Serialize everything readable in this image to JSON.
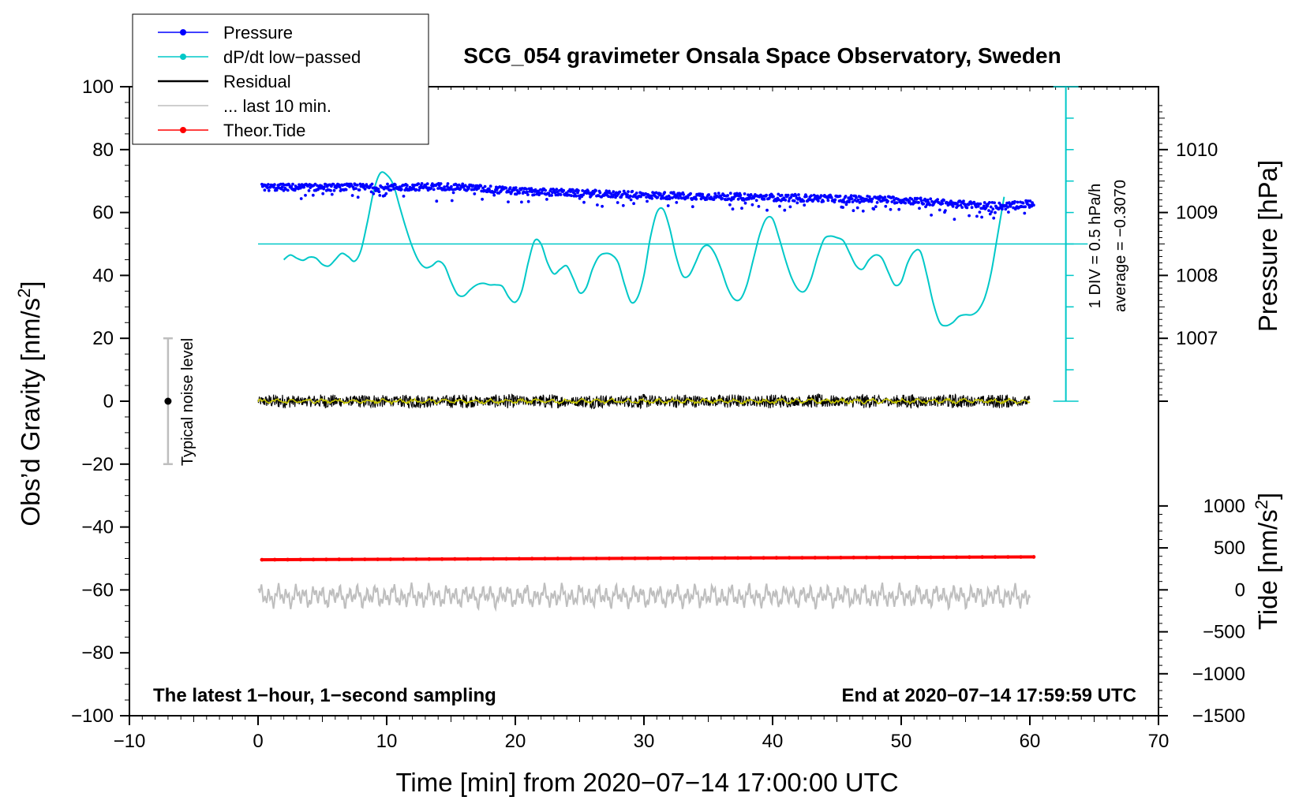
{
  "chart_data": {
    "type": "line",
    "title": "SCG_054 gravimeter Onsala Space Observatory, Sweden",
    "xlabel": "Time [min] from 2020−07−14 17:00:00 UTC",
    "ylabel_left": "Obs’d Gravity [nm/s",
    "ylabel_left_sup": "2",
    "ylabel_left_end": "]",
    "ylabel_right_pressure": "Pressure [hPa]",
    "ylabel_right_tide": "Tide [nm/s",
    "ylabel_right_tide_sup": "2",
    "ylabel_right_tide_end": "]",
    "xlim": [
      -10,
      70
    ],
    "ylim": [
      -100,
      100
    ],
    "x_ticks": [
      {
        "v": -10,
        "label": "−10"
      },
      {
        "v": 0,
        "label": "0"
      },
      {
        "v": 10,
        "label": "10"
      },
      {
        "v": 20,
        "label": "20"
      },
      {
        "v": 30,
        "label": "30"
      },
      {
        "v": 40,
        "label": "40"
      },
      {
        "v": 50,
        "label": "50"
      },
      {
        "v": 60,
        "label": "60"
      },
      {
        "v": 70,
        "label": "70"
      }
    ],
    "y_ticks": [
      {
        "v": 100,
        "label": "100"
      },
      {
        "v": 80,
        "label": "80"
      },
      {
        "v": 60,
        "label": "60"
      },
      {
        "v": 40,
        "label": "40"
      },
      {
        "v": 20,
        "label": "20"
      },
      {
        "v": 0,
        "label": "0"
      },
      {
        "v": -20,
        "label": "−20"
      },
      {
        "v": -40,
        "label": "−40"
      },
      {
        "v": -60,
        "label": "−60"
      },
      {
        "v": -80,
        "label": "−80"
      },
      {
        "v": -100,
        "label": "−100"
      }
    ],
    "pressure_axis": {
      "scale": "1 hPa = 20 nm/s² on left axis",
      "ticks": [
        {
          "v": 1010,
          "label": "1010"
        },
        {
          "v": 1009,
          "label": "1009"
        },
        {
          "v": 1008,
          "label": "1008"
        },
        {
          "v": 1007,
          "label": "1007"
        }
      ],
      "ref": 1009.0,
      "ref_gravity": 60
    },
    "tide_axis": {
      "ticks": [
        {
          "v": 1000,
          "label": "1000"
        },
        {
          "v": 500,
          "label": "500"
        },
        {
          "v": 0,
          "label": "0"
        },
        {
          "v": -500,
          "label": "−500"
        },
        {
          "v": -1000,
          "label": "−1000"
        },
        {
          "v": -1500,
          "label": "−1500"
        }
      ],
      "range": [
        -1500,
        1000
      ],
      "gravity_range": [
        -100,
        -33.3
      ]
    },
    "legend": [
      {
        "label": "Pressure",
        "color": "#0000ff",
        "marker": true
      },
      {
        "label": "dP/dt low−passed",
        "color": "#00c8c8",
        "marker": true
      },
      {
        "label": "Residual",
        "color": "#000000",
        "marker": false
      },
      {
        "label": "... last 10 min.",
        "color": "#bebebe",
        "marker": false
      },
      {
        "label": "Theor.Tide",
        "color": "#ff0000",
        "marker": true
      }
    ],
    "notes": {
      "bottom_left": "The latest 1−hour, 1−second sampling",
      "bottom_right": "End at 2020−07−14 17:59:59 UTC",
      "noise": "Typical noise level",
      "div": "1 DIV = 0.5 hPa/h",
      "average": "average = −0.3070"
    },
    "noise_bar": {
      "x": -7,
      "center": 0,
      "half_range": 20
    },
    "dpdt_baseline": 50,
    "dpdt_scale_axis": {
      "x": 62.8,
      "ymin": 0,
      "ymax": 100
    },
    "series": [
      {
        "name": "Pressure",
        "color": "#0000ff",
        "x_range": [
          0.3,
          60.3
        ],
        "trend": [
          [
            0.3,
            68.0
          ],
          [
            10,
            68.0
          ],
          [
            15,
            68.3
          ],
          [
            20,
            66.8
          ],
          [
            30,
            65.5
          ],
          [
            40,
            64.8
          ],
          [
            50,
            64.0
          ],
          [
            55,
            62.5
          ],
          [
            58,
            62.0
          ],
          [
            60.3,
            63.0
          ]
        ],
        "band_half_width": 1.1
      },
      {
        "name": "dP/dt low-passed",
        "color": "#00c8c8",
        "x": [
          2.0,
          2.5,
          3.0,
          3.5,
          4.0,
          4.5,
          5.0,
          5.5,
          6.0,
          6.5,
          7.0,
          7.5,
          8.0,
          8.5,
          9.0,
          9.5,
          10.0,
          10.5,
          11.0,
          11.5,
          12.0,
          12.5,
          13.0,
          13.5,
          14.0,
          14.5,
          15.0,
          15.5,
          16.0,
          16.5,
          17.0,
          17.5,
          18.0,
          18.5,
          19.0,
          19.5,
          20.0,
          20.5,
          21.0,
          21.5,
          22.0,
          22.5,
          23.0,
          23.5,
          24.0,
          24.5,
          25.0,
          25.5,
          26.0,
          26.5,
          27.0,
          27.5,
          28.0,
          28.5,
          29.0,
          29.5,
          30.0,
          30.5,
          31.0,
          31.5,
          32.0,
          32.5,
          33.0,
          33.5,
          34.0,
          34.5,
          35.0,
          35.5,
          36.0,
          36.5,
          37.0,
          37.5,
          38.0,
          38.5,
          39.0,
          39.5,
          40.0,
          40.5,
          41.0,
          41.5,
          42.0,
          42.5,
          43.0,
          43.5,
          44.0,
          44.5,
          45.0,
          45.5,
          46.0,
          46.5,
          47.0,
          47.5,
          48.0,
          48.5,
          49.0,
          49.5,
          50.0,
          50.5,
          51.0,
          51.5,
          52.0,
          52.5,
          53.0,
          53.5,
          54.0,
          54.5,
          55.0,
          55.5,
          56.0,
          56.5,
          57.0,
          57.5,
          58.0
        ],
        "y": [
          45.0,
          46.5,
          45.5,
          44.8,
          45.8,
          45.5,
          43.5,
          43.0,
          45.0,
          47.0,
          46.0,
          44.5,
          48.0,
          57.0,
          67.0,
          72.5,
          72.0,
          69.0,
          62.0,
          55.0,
          49.0,
          44.5,
          42.5,
          43.0,
          44.5,
          43.0,
          38.0,
          34.0,
          33.5,
          35.5,
          37.0,
          37.5,
          37.0,
          37.0,
          36.5,
          33.0,
          31.5,
          35.0,
          44.0,
          51.0,
          50.0,
          44.0,
          40.5,
          42.0,
          43.0,
          39.0,
          34.5,
          36.0,
          42.0,
          46.0,
          47.0,
          46.5,
          44.0,
          37.0,
          31.5,
          33.0,
          40.0,
          52.0,
          60.0,
          61.0,
          55.0,
          46.0,
          40.0,
          40.0,
          44.0,
          48.5,
          49.5,
          47.0,
          42.0,
          36.0,
          32.5,
          32.5,
          37.0,
          45.0,
          53.0,
          58.0,
          58.0,
          52.0,
          45.0,
          39.0,
          35.5,
          35.0,
          39.0,
          46.0,
          51.5,
          52.5,
          52.0,
          51.0,
          47.0,
          43.0,
          42.0,
          45.0,
          46.5,
          45.5,
          41.0,
          37.0,
          38.0,
          44.0,
          47.5,
          47.5,
          40.0,
          31.0,
          25.0,
          24.0,
          25.0,
          27.0,
          27.5,
          27.5,
          29.0,
          33.0,
          41.0,
          53.0,
          65.0
        ]
      },
      {
        "name": "Residual",
        "color": "#000000",
        "x_range": [
          0,
          60
        ],
        "center": 0,
        "amplitude": 2.3
      },
      {
        "name": "Residual smoothed",
        "color": "#c8c800",
        "x_range": [
          0,
          60
        ],
        "center": 0,
        "amplitude": 0.8
      },
      {
        "name": "... last 10 min.",
        "color": "#bebebe",
        "x_range": [
          0,
          60
        ],
        "center": -62,
        "amplitude": 2.6
      },
      {
        "name": "Theor.Tide",
        "color": "#ff0000",
        "x": [
          0.3,
          60.3
        ],
        "y": [
          -50.4,
          -49.5
        ]
      }
    ]
  }
}
